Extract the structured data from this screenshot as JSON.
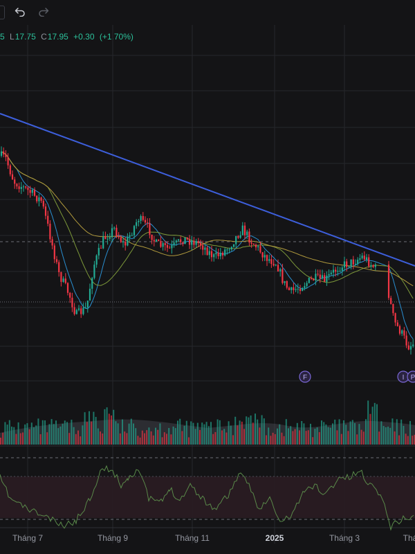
{
  "toolbar": {
    "undo_icon": "undo-arrow-icon",
    "redo_icon": "redo-arrow-icon"
  },
  "ohlc": {
    "open_fragment": "5",
    "low_label": "L",
    "low_value": "17.75",
    "close_label": "C",
    "close_value": "17.95",
    "change": "+0.30",
    "change_pct": "(+1.70%)"
  },
  "colors": {
    "background": "#141416",
    "up_candle": "#22ab94",
    "down_candle": "#f23645",
    "trendline": "#3d5fdc",
    "ma_fast": "#2a8fd1",
    "ma_medium": "#7e9a3a",
    "ma_slow": "#b19a3d",
    "rsi_line": "#5a8a4a",
    "rsi_band": "#2a1c22"
  },
  "markers": [
    "F",
    "I",
    "P"
  ],
  "x_axis_labels": [
    "Tháng 7",
    "Tháng 9",
    "Tháng 11",
    "2025",
    "Tháng 3",
    "Thá"
  ]
}
